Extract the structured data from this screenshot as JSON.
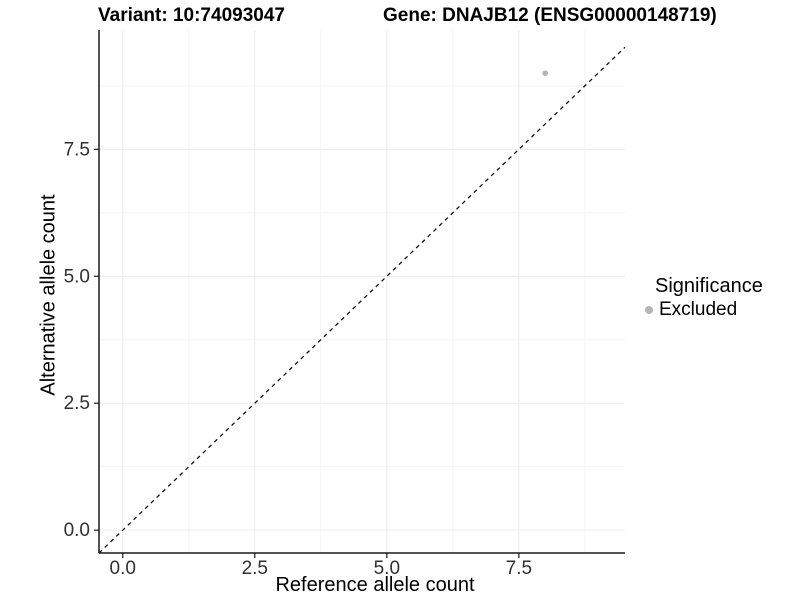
{
  "titles": {
    "variant": "Variant: 10:74093047",
    "gene": "Gene: DNAJB12 (ENSG00000148719)"
  },
  "chart_data": {
    "type": "scatter",
    "xlabel": "Reference allele count",
    "ylabel": "Alternative allele count",
    "xlim": [
      -0.45,
      9.51
    ],
    "ylim": [
      -0.45,
      9.85
    ],
    "xticks": {
      "values": [
        0,
        2.5,
        5,
        7.5
      ],
      "labels": [
        "0.0",
        "2.5",
        "5.0",
        "7.5"
      ]
    },
    "yticks": {
      "values": [
        0,
        2.5,
        5,
        7.5
      ],
      "labels": [
        "0.0",
        "2.5",
        "5.0",
        "7.5"
      ]
    },
    "minor_breaks": [
      1.25,
      3.75,
      6.25,
      8.75
    ],
    "grid": "major and minor, very light gray",
    "identity_line": {
      "style": "dashed",
      "color": "#111111",
      "from": -0.45,
      "to": 9.85
    },
    "series": [
      {
        "name": "Excluded",
        "color": "#b5b5b5",
        "points": [
          [
            8,
            9
          ]
        ]
      }
    ],
    "legend": {
      "title": "Significance",
      "position": "right",
      "entries": [
        {
          "label": "Excluded",
          "color": "#b5b5b5"
        }
      ]
    },
    "colors": {
      "axis": "#1a1a1a",
      "tick_label": "#303030",
      "grid_major": "#ececec",
      "grid_minor": "#f4f4f4",
      "background": "#ffffff"
    }
  }
}
